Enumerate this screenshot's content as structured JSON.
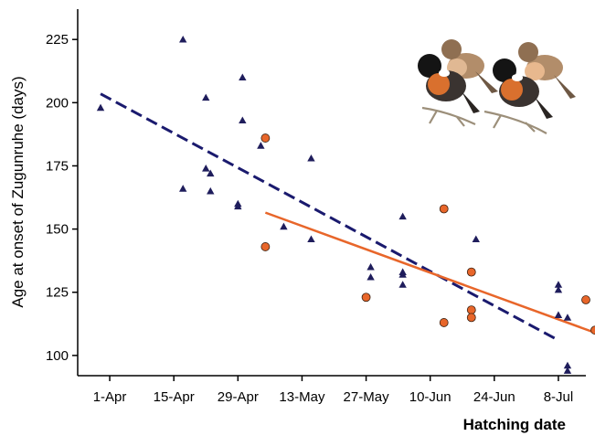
{
  "chart_data": {
    "type": "scatter",
    "xlabel": "Hatching date",
    "ylabel": "Age at onset of Zugunruhe (days)",
    "x_ticks": [
      "1-Apr",
      "15-Apr",
      "29-Apr",
      "13-May",
      "27-May",
      "10-Jun",
      "24-Jun",
      "8-Jul"
    ],
    "y_ticks": [
      100,
      125,
      150,
      175,
      200,
      225
    ],
    "xlim": [
      "1997-03-25",
      "1997-07-14"
    ],
    "ylim": [
      92,
      237
    ],
    "grid": false,
    "legend": "none",
    "series": [
      {
        "marker": "triangle",
        "color": "#1f1d5c",
        "points": [
          [
            "1997-03-30",
            198
          ],
          [
            "1997-04-17",
            225
          ],
          [
            "1997-04-17",
            166
          ],
          [
            "1997-04-22",
            202
          ],
          [
            "1997-04-22",
            174
          ],
          [
            "1997-04-23",
            172
          ],
          [
            "1997-04-23",
            165
          ],
          [
            "1997-04-29",
            160
          ],
          [
            "1997-04-29",
            159
          ],
          [
            "1997-04-30",
            210
          ],
          [
            "1997-04-30",
            193
          ],
          [
            "1997-05-04",
            183
          ],
          [
            "1997-05-09",
            151
          ],
          [
            "1997-05-15",
            178
          ],
          [
            "1997-05-15",
            146
          ],
          [
            "1997-05-28",
            135
          ],
          [
            "1997-05-28",
            131
          ],
          [
            "1997-06-04",
            155
          ],
          [
            "1997-06-04",
            133
          ],
          [
            "1997-06-04",
            132
          ],
          [
            "1997-06-04",
            128
          ],
          [
            "1997-06-20",
            146
          ],
          [
            "1997-07-08",
            128
          ],
          [
            "1997-07-08",
            126
          ],
          [
            "1997-07-08",
            116
          ],
          [
            "1997-07-10",
            115
          ],
          [
            "1997-07-10",
            96
          ],
          [
            "1997-07-10",
            94
          ]
        ]
      },
      {
        "marker": "circle",
        "color": "#e8662a",
        "points": [
          [
            "1997-05-05",
            186
          ],
          [
            "1997-05-05",
            143
          ],
          [
            "1997-05-27",
            123
          ],
          [
            "1997-06-13",
            158
          ],
          [
            "1997-06-13",
            113
          ],
          [
            "1997-06-19",
            133
          ],
          [
            "1997-06-19",
            118
          ],
          [
            "1997-06-19",
            115
          ],
          [
            "1997-07-14",
            122
          ],
          [
            "1997-07-16",
            110
          ]
        ]
      }
    ],
    "trend_lines": [
      {
        "style": "dashed",
        "color": "#1a1a6e",
        "from": [
          "1997-03-30",
          203.5
        ],
        "to": [
          "1997-07-08",
          106
        ]
      },
      {
        "style": "solid",
        "color": "#e8662a",
        "from": [
          "1997-05-05",
          156.5
        ],
        "to": [
          "1997-07-16",
          109
        ]
      }
    ]
  }
}
